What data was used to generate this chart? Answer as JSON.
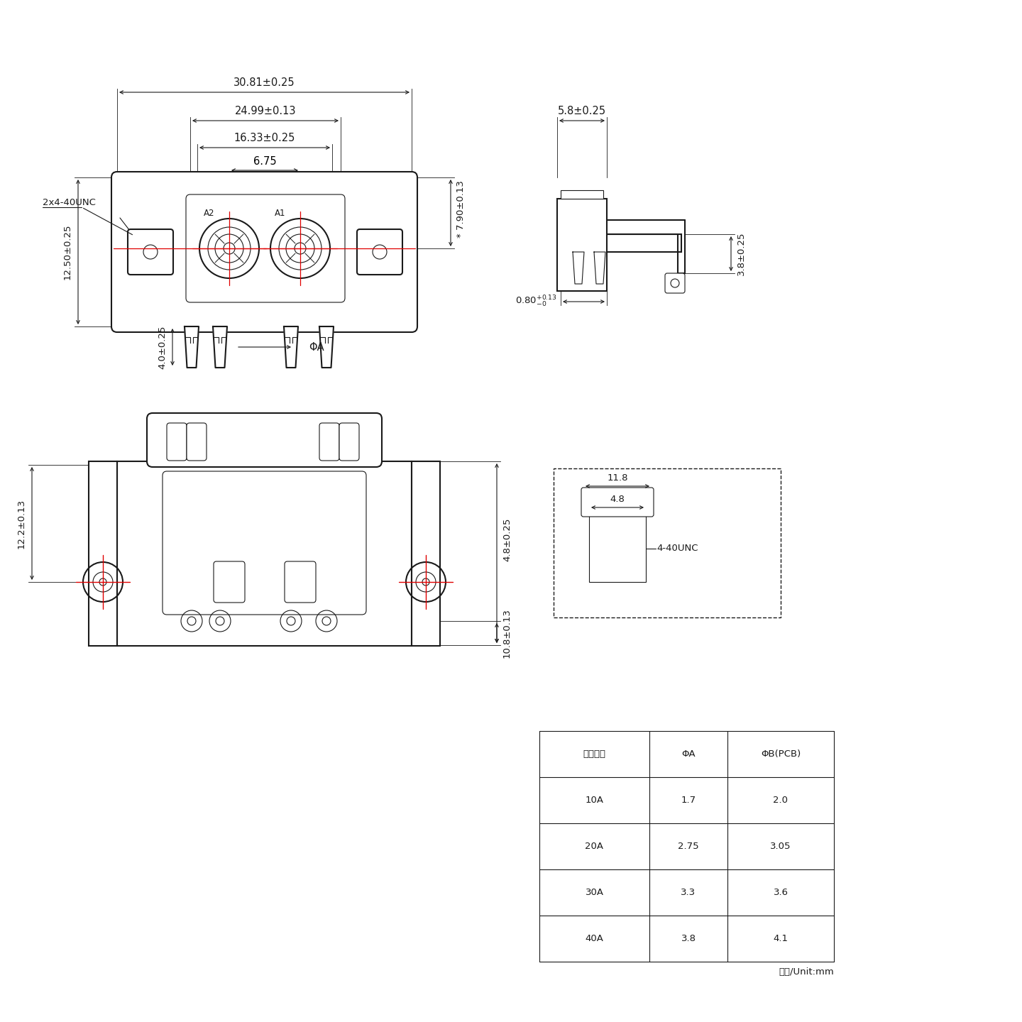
{
  "bg_color": "#ffffff",
  "line_color": "#1a1a1a",
  "red_color": "#e00000",
  "watermark_color": "#f0b8b8",
  "dim_fontsize": 10.5,
  "small_fontsize": 9.5,
  "table_data": {
    "headers": [
      "额定电流",
      "ΦA",
      "ΦB(PCB)"
    ],
    "rows": [
      [
        "10A",
        "1.7",
        "2.0"
      ],
      [
        "20A",
        "2.75",
        "3.05"
      ],
      [
        "30A",
        "3.3",
        "3.6"
      ],
      [
        "40A",
        "3.8",
        "4.1"
      ]
    ],
    "footer": "单位/Unit:mm"
  },
  "dims": {
    "w1": "30.81±0.25",
    "w2": "24.99±0.13",
    "w3": "16.33±0.25",
    "w4": "6.75",
    "h_right": "7.90±0.13",
    "h_left": "12.50±0.25",
    "pin_height": "4.0±0.25",
    "phi_a": "ΦA",
    "side_w": "5.8±0.25",
    "side_h": "3.8±0.25",
    "side_offset": "0.80",
    "side_offset_tol": "+0.13\n-0",
    "bv_h1": "4.8±0.25",
    "bv_h2": "10.8±0.13",
    "bv_left": "12.2±0.13",
    "screw_label": "2x4-40UNC",
    "ins_w1": "11.8",
    "ins_w2": "4.8",
    "ins_label": "4-40UNC"
  }
}
